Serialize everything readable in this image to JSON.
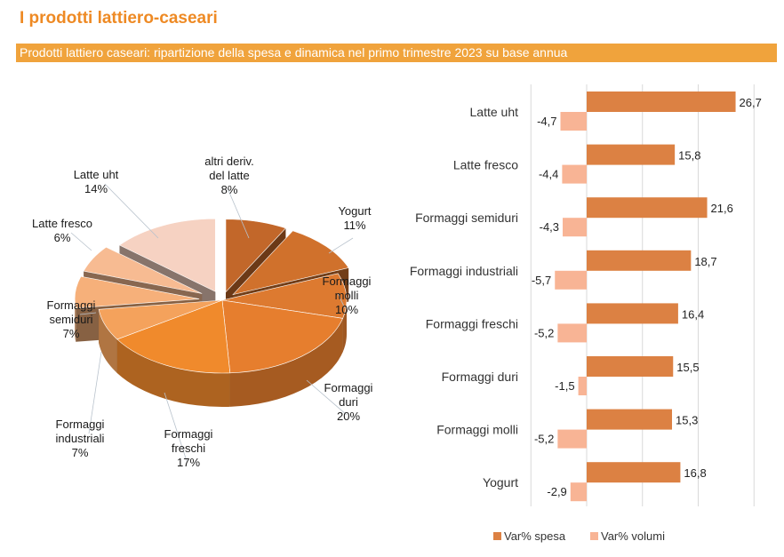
{
  "page": {
    "title": "I prodotti lattiero-caseari",
    "banner": "Prodotti lattiero caseari: ripartizione della spesa e dinamica nel primo trimestre 2023 su base annua"
  },
  "chart_data": [
    {
      "type": "pie",
      "title": "",
      "slices": [
        {
          "label": "altri deriv. del latte",
          "display": "altri deriv.\ndel latte\n8%",
          "value": 8,
          "color": "#c2672a"
        },
        {
          "label": "Yogurt",
          "display": "Yogurt\n11%",
          "value": 11,
          "color": "#d0712c"
        },
        {
          "label": "Formaggi molli",
          "display": "Formaggi\nmolli\n10%",
          "value": 10,
          "color": "#dd7a30"
        },
        {
          "label": "Formaggi duri",
          "display": "Formaggi\nduri\n20%",
          "value": 20,
          "color": "#e67e2e"
        },
        {
          "label": "Formaggi freschi",
          "display": "Formaggi\nfreschi\n17%",
          "value": 17,
          "color": "#f08a2c"
        },
        {
          "label": "Formaggi industriali",
          "display": "Formaggi\nindustriali\n7%",
          "value": 7,
          "color": "#f4a25c"
        },
        {
          "label": "Formaggi semiduri",
          "display": "Formaggi\nsemiduri\n7%",
          "value": 7,
          "color": "#f6b07a"
        },
        {
          "label": "Latte fresco",
          "display": "Latte fresco\n6%",
          "value": 6,
          "color": "#f7bb92"
        },
        {
          "label": "Latte uht",
          "display": "Latte uht\n14%",
          "value": 14,
          "color": "#f6d2c2"
        }
      ]
    },
    {
      "type": "bar",
      "orientation": "horizontal",
      "title": "",
      "categories": [
        "Latte uht",
        "Latte fresco",
        "Formaggi semiduri",
        "Formaggi industriali",
        "Formaggi freschi",
        "Formaggi duri",
        "Formaggi molli",
        "Yogurt"
      ],
      "series": [
        {
          "name": "Var% spesa",
          "color": "#dc8143",
          "values": [
            26.7,
            15.8,
            21.6,
            18.7,
            16.4,
            15.5,
            15.3,
            16.8
          ]
        },
        {
          "name": "Var% volumi",
          "color": "#f8b495",
          "values": [
            -4.7,
            -4.4,
            -4.3,
            -5.7,
            -5.2,
            -1.5,
            -5.2,
            -2.9
          ]
        }
      ],
      "value_labels": {
        "Var% spesa": [
          "26,7",
          "15,8",
          "21,6",
          "18,7",
          "16,4",
          "15,5",
          "15,3",
          "16,8"
        ],
        "Var% volumi": [
          "-4,7",
          "-4,4",
          "-4,3",
          "-5,7",
          "-5,2",
          "-1,5",
          "-5,2",
          "-2,9"
        ]
      },
      "xlim": [
        -10,
        30
      ],
      "grid": true,
      "legend": "bottom"
    }
  ]
}
